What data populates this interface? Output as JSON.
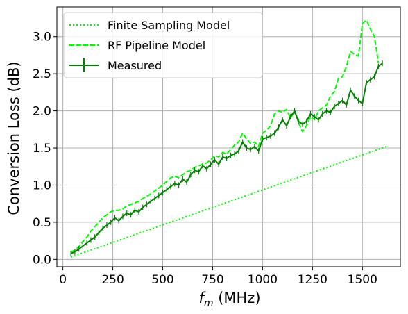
{
  "chart_data": {
    "type": "line",
    "xlabel_symbol": "f",
    "xlabel_subscript": "m",
    "xlabel_unit": " (MHz)",
    "ylabel": "Conversion Loss (dB)",
    "xlim": [
      -30,
      1690
    ],
    "ylim": [
      -0.1,
      3.4
    ],
    "xticks": [
      0,
      250,
      500,
      750,
      1000,
      1250,
      1500
    ],
    "yticks": [
      0.0,
      0.5,
      1.0,
      1.5,
      2.0,
      2.5,
      3.0
    ],
    "xtick_labels": [
      "0",
      "250",
      "500",
      "750",
      "1000",
      "1250",
      "1500"
    ],
    "ytick_labels": [
      "0.0",
      "0.5",
      "1.0",
      "1.5",
      "2.0",
      "2.5",
      "3.0"
    ],
    "grid": true,
    "legend_position": "top-left",
    "series": [
      {
        "name": "Finite Sampling Model",
        "style": "dotted",
        "color": "#00ff00",
        "x": [
          40,
          1620
        ],
        "y": [
          0.03,
          1.52
        ]
      },
      {
        "name": "RF Pipeline Model",
        "style": "dashed",
        "color": "#00ff00",
        "x": [
          40,
          60,
          80,
          100,
          120,
          140,
          160,
          180,
          200,
          220,
          240,
          260,
          280,
          300,
          320,
          340,
          360,
          380,
          400,
          420,
          440,
          460,
          480,
          500,
          520,
          540,
          560,
          580,
          600,
          620,
          640,
          660,
          680,
          700,
          720,
          740,
          760,
          780,
          800,
          820,
          840,
          860,
          880,
          900,
          920,
          940,
          960,
          980,
          1000,
          1020,
          1040,
          1060,
          1080,
          1100,
          1120,
          1140,
          1160,
          1180,
          1200,
          1220,
          1240,
          1260,
          1280,
          1300,
          1320,
          1340,
          1360,
          1380,
          1400,
          1420,
          1440,
          1460,
          1480,
          1500,
          1520,
          1540,
          1560,
          1580
        ],
        "y": [
          0.1,
          0.12,
          0.17,
          0.24,
          0.3,
          0.38,
          0.44,
          0.5,
          0.56,
          0.6,
          0.64,
          0.66,
          0.66,
          0.68,
          0.72,
          0.74,
          0.76,
          0.78,
          0.82,
          0.85,
          0.88,
          0.92,
          0.96,
          1.0,
          1.05,
          1.1,
          1.12,
          1.1,
          1.14,
          1.18,
          1.2,
          1.24,
          1.26,
          1.28,
          1.3,
          1.34,
          1.4,
          1.38,
          1.44,
          1.42,
          1.48,
          1.54,
          1.58,
          1.7,
          1.62,
          1.56,
          1.58,
          1.52,
          1.7,
          1.74,
          1.8,
          1.96,
          2.0,
          1.98,
          2.02,
          1.9,
          2.0,
          1.84,
          1.72,
          1.8,
          1.92,
          1.88,
          2.0,
          2.04,
          2.08,
          2.2,
          2.26,
          2.44,
          2.46,
          2.6,
          2.8,
          2.76,
          2.74,
          3.18,
          3.22,
          3.1,
          3.0,
          2.65
        ]
      },
      {
        "name": "Measured",
        "style": "solid-errorbar",
        "color": "#008000",
        "x": [
          40,
          60,
          80,
          100,
          120,
          140,
          160,
          180,
          200,
          220,
          240,
          260,
          280,
          300,
          320,
          340,
          360,
          380,
          400,
          420,
          440,
          460,
          480,
          500,
          520,
          540,
          560,
          580,
          600,
          620,
          640,
          660,
          680,
          700,
          720,
          740,
          760,
          780,
          800,
          820,
          840,
          860,
          880,
          900,
          920,
          940,
          960,
          980,
          1000,
          1020,
          1040,
          1060,
          1080,
          1100,
          1120,
          1140,
          1160,
          1180,
          1200,
          1220,
          1240,
          1260,
          1280,
          1300,
          1320,
          1340,
          1360,
          1380,
          1400,
          1420,
          1440,
          1460,
          1480,
          1500,
          1520,
          1540,
          1560,
          1580,
          1600
        ],
        "y": [
          0.08,
          0.1,
          0.14,
          0.18,
          0.22,
          0.26,
          0.3,
          0.36,
          0.42,
          0.46,
          0.5,
          0.56,
          0.52,
          0.58,
          0.62,
          0.6,
          0.66,
          0.64,
          0.7,
          0.74,
          0.78,
          0.82,
          0.86,
          0.9,
          0.94,
          0.98,
          1.02,
          1.0,
          1.08,
          1.04,
          1.14,
          1.2,
          1.18,
          1.26,
          1.22,
          1.28,
          1.34,
          1.28,
          1.38,
          1.36,
          1.4,
          1.42,
          1.46,
          1.58,
          1.5,
          1.48,
          1.52,
          1.46,
          1.62,
          1.64,
          1.66,
          1.7,
          1.78,
          1.88,
          1.8,
          1.92,
          2.0,
          1.86,
          1.82,
          1.86,
          1.96,
          1.92,
          1.88,
          1.96,
          2.0,
          1.98,
          2.06,
          2.1,
          2.14,
          2.08,
          2.28,
          2.2,
          2.14,
          2.1,
          2.38,
          2.42,
          2.46,
          2.6,
          2.64
        ]
      }
    ]
  }
}
